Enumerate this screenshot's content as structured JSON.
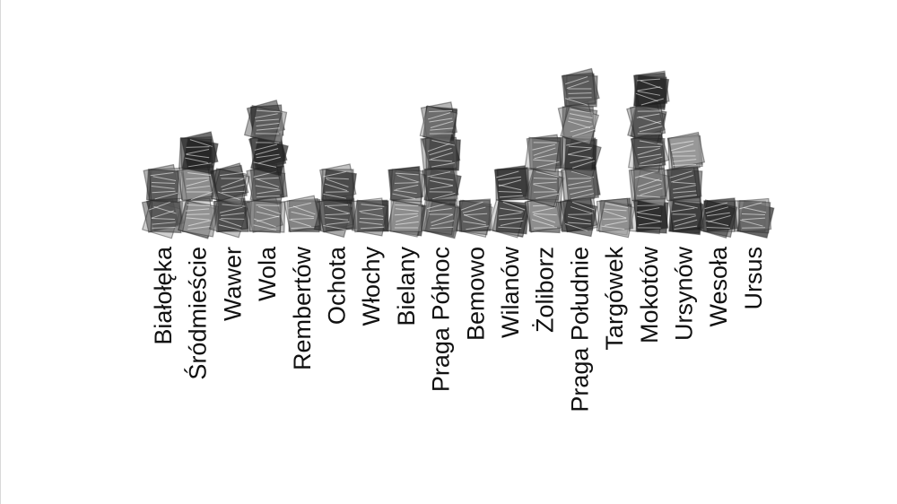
{
  "chart_data": {
    "type": "bar",
    "style": "stacked hand-drawn squares (unit pictogram columns)",
    "categories": [
      "Białołęka",
      "Śródmieście",
      "Wawer",
      "Wola",
      "Rembertów",
      "Ochota",
      "Włochy",
      "Bielany",
      "Praga Północ",
      "Bemowo",
      "Wilanów",
      "Żoliborz",
      "Praga Południe",
      "Targówek",
      "Mokotów",
      "Ursynów",
      "Wesoła",
      "Ursus"
    ],
    "values": [
      2,
      3,
      2,
      4,
      1,
      2,
      1,
      2,
      4,
      1,
      2,
      3,
      5,
      1,
      5,
      3,
      1,
      1
    ],
    "title": "",
    "xlabel": "",
    "ylabel": "",
    "grid": false,
    "legend": "none",
    "colors": {
      "dark": "#1c1c1c",
      "mid": "#5a5a5a",
      "light": "#9a9a9a",
      "label": "#111111"
    }
  }
}
